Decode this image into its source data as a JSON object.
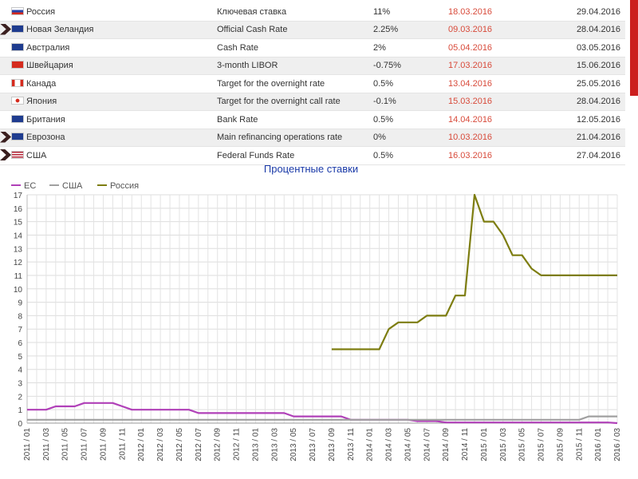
{
  "table": {
    "rows": [
      {
        "country": "Россия",
        "flag": "ru-flag-icon",
        "instrument": "Ключевая ставка",
        "rate": "11%",
        "changed": "18.03.2016",
        "next": "29.04.2016",
        "marker": false
      },
      {
        "country": "Новая Зеландия",
        "flag": "nz-flag-icon",
        "instrument": "Official Cash Rate",
        "rate": "2.25%",
        "changed": "09.03.2016",
        "next": "28.04.2016",
        "marker": true
      },
      {
        "country": "Австралия",
        "flag": "au-flag-icon",
        "instrument": "Cash Rate",
        "rate": "2%",
        "changed": "05.04.2016",
        "next": "03.05.2016",
        "marker": false
      },
      {
        "country": "Швейцария",
        "flag": "ch-flag-icon",
        "instrument": "3-month LIBOR",
        "rate": "-0.75%",
        "changed": "17.03.2016",
        "next": "15.06.2016",
        "marker": false
      },
      {
        "country": "Канада",
        "flag": "ca-flag-icon",
        "instrument": "Target for the overnight rate",
        "rate": "0.5%",
        "changed": "13.04.2016",
        "next": "25.05.2016",
        "marker": false
      },
      {
        "country": "Япония",
        "flag": "jp-flag-icon",
        "instrument": "Target for the overnight call rate",
        "rate": "-0.1%",
        "changed": "15.03.2016",
        "next": "28.04.2016",
        "marker": false
      },
      {
        "country": "Британия",
        "flag": "uk-flag-icon",
        "instrument": "Bank Rate",
        "rate": "0.5%",
        "changed": "14.04.2016",
        "next": "12.05.2016",
        "marker": false
      },
      {
        "country": "Еврозона",
        "flag": "eu-flag-icon",
        "instrument": "Main refinancing operations rate",
        "rate": "0%",
        "changed": "10.03.2016",
        "next": "21.04.2016",
        "marker": true
      },
      {
        "country": "США",
        "flag": "us-flag-icon",
        "instrument": "Federal Funds Rate",
        "rate": "0.5%",
        "changed": "16.03.2016",
        "next": "27.04.2016",
        "marker": true
      }
    ]
  },
  "colors": {
    "eu": "#b040b8",
    "usa": "#a0a0a0",
    "russia": "#7d7d10",
    "date_red": "#d84a3a",
    "accent_bar": "#cc1e1e"
  },
  "chart_data": {
    "type": "line",
    "title": "Процентные ставки",
    "legend_position": "top-left",
    "grid": true,
    "ylim": [
      0,
      17
    ],
    "y_ticks": [
      0,
      1,
      2,
      3,
      4,
      5,
      6,
      7,
      8,
      9,
      10,
      11,
      12,
      13,
      14,
      15,
      16,
      17
    ],
    "x_ticks": [
      "2011 / 01",
      "2011 / 03",
      "2011 / 05",
      "2011 / 07",
      "2011 / 09",
      "2011 / 11",
      "2012 / 01",
      "2012 / 03",
      "2012 / 05",
      "2012 / 07",
      "2012 / 09",
      "2012 / 11",
      "2013 / 01",
      "2013 / 03",
      "2013 / 05",
      "2013 / 07",
      "2013 / 09",
      "2013 / 11",
      "2014 / 01",
      "2014 / 03",
      "2014 / 05",
      "2014 / 07",
      "2014 / 09",
      "2014 / 11",
      "2015 / 01",
      "2015 / 03",
      "2015 / 05",
      "2015 / 07",
      "2015 / 09",
      "2015 / 11",
      "2016 / 01",
      "2016 / 03"
    ],
    "series": [
      {
        "name": "ЕС",
        "color": "#b040b8",
        "points": [
          [
            "2011-01",
            1.0
          ],
          [
            "2011-03",
            1.0
          ],
          [
            "2011-04",
            1.25
          ],
          [
            "2011-06",
            1.25
          ],
          [
            "2011-07",
            1.5
          ],
          [
            "2011-10",
            1.5
          ],
          [
            "2011-11",
            1.25
          ],
          [
            "2011-12",
            1.0
          ],
          [
            "2012-06",
            1.0
          ],
          [
            "2012-07",
            0.75
          ],
          [
            "2013-04",
            0.75
          ],
          [
            "2013-05",
            0.5
          ],
          [
            "2013-10",
            0.5
          ],
          [
            "2013-11",
            0.25
          ],
          [
            "2014-05",
            0.25
          ],
          [
            "2014-06",
            0.15
          ],
          [
            "2014-08",
            0.15
          ],
          [
            "2014-09",
            0.05
          ],
          [
            "2016-02",
            0.05
          ],
          [
            "2016-03",
            0.0
          ]
        ]
      },
      {
        "name": "США",
        "color": "#a0a0a0",
        "points": [
          [
            "2011-01",
            0.25
          ],
          [
            "2015-11",
            0.25
          ],
          [
            "2015-12",
            0.5
          ],
          [
            "2016-03",
            0.5
          ]
        ]
      },
      {
        "name": "Россия",
        "color": "#7d7d10",
        "points": [
          [
            "2013-09",
            5.5
          ],
          [
            "2014-02",
            5.5
          ],
          [
            "2014-03",
            7.0
          ],
          [
            "2014-04",
            7.5
          ],
          [
            "2014-06",
            7.5
          ],
          [
            "2014-07",
            8.0
          ],
          [
            "2014-09",
            8.0
          ],
          [
            "2014-10",
            9.5
          ],
          [
            "2014-11",
            9.5
          ],
          [
            "2014-12",
            17.0
          ],
          [
            "2015-01",
            15.0
          ],
          [
            "2015-02",
            15.0
          ],
          [
            "2015-03",
            14.0
          ],
          [
            "2015-04",
            12.5
          ],
          [
            "2015-05",
            12.5
          ],
          [
            "2015-06",
            11.5
          ],
          [
            "2015-07",
            11.0
          ],
          [
            "2016-03",
            11.0
          ]
        ]
      }
    ]
  }
}
